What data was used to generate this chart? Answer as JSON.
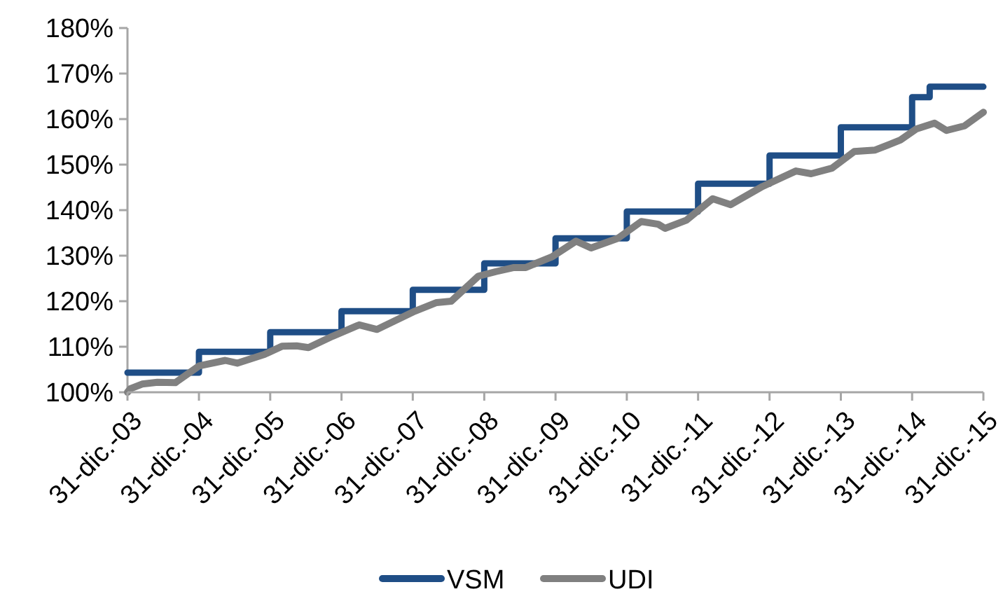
{
  "chart_data": {
    "type": "line",
    "legend": "bottom",
    "grid": false,
    "xlim": [
      "2003-12-31",
      "2015-12-31"
    ],
    "xticks": [
      {
        "value": "2003-12-31",
        "label": "31-dic.-03"
      },
      {
        "value": "2004-12-31",
        "label": "31-dic.-04"
      },
      {
        "value": "2005-12-31",
        "label": "31-dic.-05"
      },
      {
        "value": "2006-12-31",
        "label": "31-dic.-06"
      },
      {
        "value": "2007-12-31",
        "label": "31-dic.-07"
      },
      {
        "value": "2008-12-31",
        "label": "31-dic.-08"
      },
      {
        "value": "2009-12-31",
        "label": "31-dic.-09"
      },
      {
        "value": "2010-12-31",
        "label": "31-dic.-10"
      },
      {
        "value": "2011-12-31",
        "label": "31-dic.-11"
      },
      {
        "value": "2012-12-31",
        "label": "31-dic.-12"
      },
      {
        "value": "2013-12-31",
        "label": "31-dic.-13"
      },
      {
        "value": "2014-12-31",
        "label": "31-dic.-14"
      },
      {
        "value": "2015-12-31",
        "label": "31-dic.-15"
      }
    ],
    "ylim": [
      100,
      180
    ],
    "yticks": [
      {
        "value": 100,
        "label": "100%"
      },
      {
        "value": 110,
        "label": "110%"
      },
      {
        "value": 120,
        "label": "120%"
      },
      {
        "value": 130,
        "label": "130%"
      },
      {
        "value": 140,
        "label": "140%"
      },
      {
        "value": 150,
        "label": "150%"
      },
      {
        "value": 160,
        "label": "160%"
      },
      {
        "value": 170,
        "label": "170%"
      },
      {
        "value": 180,
        "label": "180%"
      }
    ],
    "series": [
      {
        "name": "VSM",
        "type": "step",
        "color": "#1f4e86",
        "x": [
          "2003-12-31",
          "2004-12-31",
          "2005-12-31",
          "2006-12-31",
          "2007-12-31",
          "2008-12-31",
          "2009-12-31",
          "2010-12-31",
          "2011-12-31",
          "2012-12-31",
          "2013-12-31",
          "2014-12-31",
          "2015-03-31",
          "2015-12-31"
        ],
        "values": [
          104.3,
          108.9,
          113.2,
          117.8,
          122.5,
          128.3,
          133.8,
          139.7,
          145.8,
          152,
          158.2,
          164.8,
          167.1,
          167.1
        ]
      },
      {
        "name": "UDI",
        "type": "line",
        "color": "#808080",
        "x": [
          "2003-12-31",
          "2004-01-15",
          "2004-03-15",
          "2004-06-01",
          "2004-09-01",
          "2005-01-01",
          "2005-05-15",
          "2005-07-15",
          "2005-12-01",
          "2006-03-01",
          "2006-05-15",
          "2006-07-15",
          "2006-11-15",
          "2007-04-01",
          "2007-07-01",
          "2008-01-10",
          "2008-05-01",
          "2008-07-15",
          "2008-12-01",
          "2009-03-01",
          "2009-06-01",
          "2009-08-01",
          "2009-12-15",
          "2010-04-15",
          "2010-07-01",
          "2010-11-15",
          "2011-03-15",
          "2011-06-10",
          "2011-07-15",
          "2011-11-01",
          "2012-03-15",
          "2012-06-15",
          "2012-11-25",
          "2013-05-15",
          "2013-08-01",
          "2013-11-15",
          "2014-03-10",
          "2014-06-25",
          "2014-11-01",
          "2015-01-20",
          "2015-04-25",
          "2015-06-25",
          "2015-09-25",
          "2015-12-31"
        ],
        "values": [
          100,
          100.8,
          101.8,
          102.2,
          102.1,
          105.8,
          107,
          106.4,
          108.3,
          110.1,
          110.2,
          109.8,
          112.3,
          114.8,
          113.8,
          117.8,
          119.7,
          120,
          125.5,
          126.5,
          127.4,
          127.4,
          129.8,
          133.2,
          131.7,
          133.8,
          137.5,
          136.9,
          136,
          137.8,
          142.5,
          141.2,
          145.2,
          148.6,
          148,
          149.2,
          152.9,
          153.2,
          155.4,
          157.8,
          159.1,
          157.5,
          158.5,
          161.5
        ]
      }
    ]
  }
}
